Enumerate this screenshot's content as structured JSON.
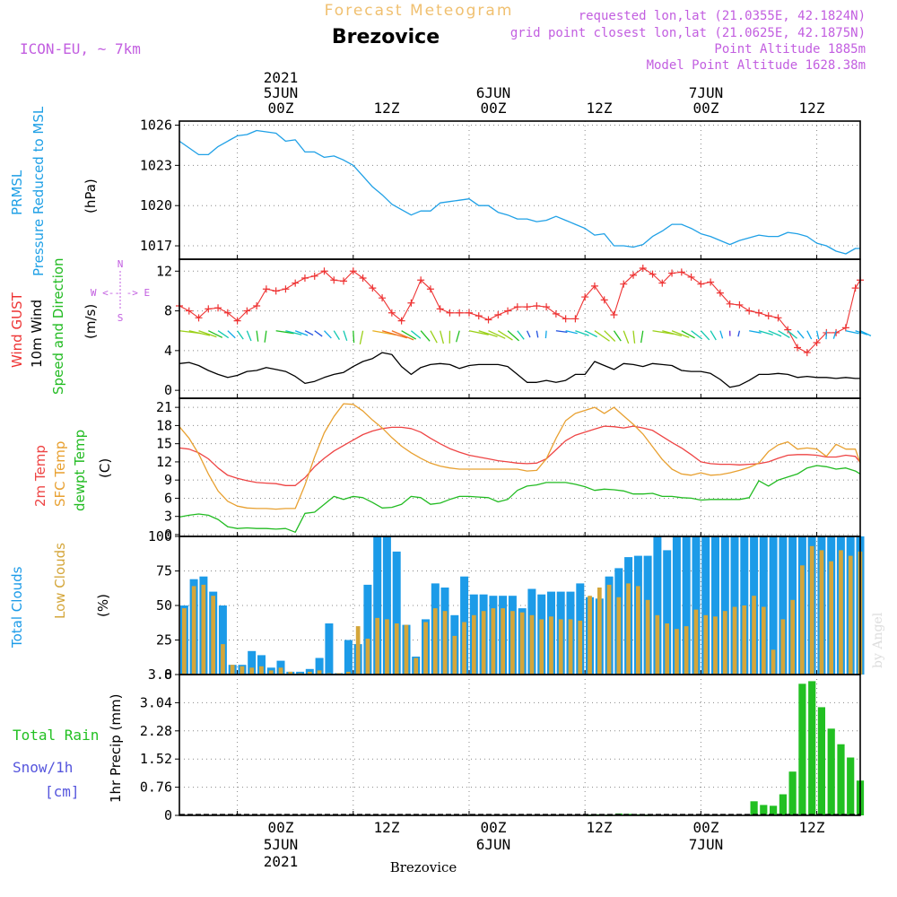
{
  "header": {
    "title": "Forecast Meteogram",
    "location": "Brezovice",
    "model": "ICON-EU, ~ 7km",
    "requested": "requested lon,lat (21.0355E, 42.1824N)",
    "gridpoint": "grid point closest lon,lat (21.0625E, 42.1875N)",
    "point_alt": "Point Altitude 1885m",
    "model_alt": "Model Point Altitude 1628.38m",
    "footer_location": "Brezovice",
    "credit": "by Angel"
  },
  "time_axis": {
    "year": "2021",
    "ticks": [
      "00Z",
      "12Z",
      "00Z",
      "12Z",
      "00Z",
      "12Z"
    ],
    "dates": [
      "5JUN",
      "6JUN",
      "7JUN"
    ],
    "start_hour": -6,
    "end_hour": 64.5
  },
  "colors": {
    "pressure": "#1fa0e6",
    "gust": "#ee3333",
    "wind10m": "#000000",
    "direction": "#22bb22",
    "temp2m": "#ee4444",
    "sfc_temp": "#e8a030",
    "dewpt": "#22bb22",
    "total_clouds": "#1c9be8",
    "low_clouds": "#d4a63a",
    "precip": "#22c022",
    "meta": "#c25ee0",
    "title_faint": "#f0c070",
    "snow_label": "#5555dd",
    "credit": "#dddddd"
  },
  "chart_data": [
    {
      "type": "line",
      "name": "pressure",
      "ylabel": [
        "PRMSL",
        "Pressure Reduced to MSL"
      ],
      "unit": "(hPa)",
      "ylim": [
        1016,
        1026.3
      ],
      "yticks": [
        1017,
        1020,
        1023,
        1026
      ],
      "x": [
        -6,
        -5,
        -4,
        -3,
        -2,
        -1,
        0,
        1,
        2,
        3,
        4,
        5,
        6,
        7,
        8,
        9,
        10,
        11,
        12,
        13,
        14,
        15,
        16,
        17,
        18,
        19,
        20,
        21,
        22,
        23,
        24,
        25,
        26,
        27,
        28,
        29,
        30,
        31,
        32,
        33,
        34,
        35,
        36,
        37,
        38,
        39,
        40,
        41,
        42,
        43,
        44,
        45,
        46,
        47,
        48,
        49,
        50,
        51,
        52,
        53,
        54,
        55,
        56,
        57,
        58,
        59,
        60,
        61,
        62,
        63,
        64,
        64.5
      ],
      "values": [
        1024.8,
        1024.3,
        1023.8,
        1023.8,
        1024.4,
        1024.8,
        1025.2,
        1025.3,
        1025.6,
        1025.5,
        1025.4,
        1024.8,
        1024.9,
        1024.0,
        1024.0,
        1023.6,
        1023.7,
        1023.4,
        1023.0,
        1022.2,
        1021.4,
        1020.8,
        1020.1,
        1019.7,
        1019.3,
        1019.6,
        1019.6,
        1020.2,
        1020.3,
        1020.4,
        1020.5,
        1020.0,
        1020.0,
        1019.5,
        1019.3,
        1019.0,
        1019.0,
        1018.8,
        1018.9,
        1019.2,
        1018.9,
        1018.6,
        1018.3,
        1017.8,
        1017.9,
        1017.0,
        1017.0,
        1016.9,
        1017.1,
        1017.7,
        1018.1,
        1018.6,
        1018.6,
        1018.3,
        1017.9,
        1017.7,
        1017.4,
        1017.1,
        1017.4,
        1017.6,
        1017.8,
        1017.7,
        1017.7,
        1018.0,
        1017.9,
        1017.7,
        1017.2,
        1017.0,
        1016.6,
        1016.4,
        1016.8,
        1016.8
      ]
    },
    {
      "type": "line",
      "name": "wind",
      "ylabel": [
        "Wind GUST",
        "10m Wind",
        "Speed and Direction"
      ],
      "unit": "(m/s)",
      "compass": [
        "N",
        "S",
        "W <-- -> E"
      ],
      "ylim": [
        -0.8,
        13.2
      ],
      "yticks": [
        0,
        4,
        8,
        12
      ],
      "x": [
        -6,
        -5,
        -4,
        -3,
        -2,
        -1,
        0,
        1,
        2,
        3,
        4,
        5,
        6,
        7,
        8,
        9,
        10,
        11,
        12,
        13,
        14,
        15,
        16,
        17,
        18,
        19,
        20,
        21,
        22,
        23,
        24,
        25,
        26,
        27,
        28,
        29,
        30,
        31,
        32,
        33,
        34,
        35,
        36,
        37,
        38,
        39,
        40,
        41,
        42,
        43,
        44,
        45,
        46,
        47,
        48,
        49,
        50,
        51,
        52,
        53,
        54,
        55,
        56,
        57,
        58,
        59,
        60,
        61,
        62,
        63,
        64,
        64.5
      ],
      "series": [
        {
          "name": "Wind GUST",
          "values": [
            8.5,
            8.0,
            7.3,
            8.2,
            8.3,
            7.8,
            7.0,
            8.0,
            8.5,
            10.2,
            10.0,
            10.2,
            10.8,
            11.3,
            11.5,
            12.0,
            11.1,
            11.0,
            12.0,
            11.3,
            10.3,
            9.3,
            7.8,
            7.0,
            8.8,
            11.1,
            10.2,
            8.2,
            7.8,
            7.8,
            7.8,
            7.5,
            7.1,
            7.6,
            8.0,
            8.4,
            8.4,
            8.5,
            8.4,
            7.7,
            7.2,
            7.2,
            9.4,
            10.5,
            9.1,
            7.6,
            10.7,
            11.6,
            12.3,
            11.7,
            10.8,
            11.8,
            11.9,
            11.4,
            10.7,
            10.9,
            9.8,
            8.7,
            8.6,
            8.0,
            7.8,
            7.5,
            7.3,
            6.1,
            4.3,
            3.8,
            4.8,
            5.8,
            5.8,
            6.3,
            10.3,
            11.1
          ]
        },
        {
          "name": "10m Wind",
          "values": [
            2.7,
            2.8,
            2.5,
            2.0,
            1.6,
            1.3,
            1.5,
            1.9,
            2.0,
            2.3,
            2.1,
            1.9,
            1.4,
            0.7,
            0.9,
            1.3,
            1.6,
            1.8,
            2.4,
            2.9,
            3.2,
            3.8,
            3.6,
            2.4,
            1.6,
            2.3,
            2.6,
            2.7,
            2.6,
            2.2,
            2.5,
            2.6,
            2.6,
            2.6,
            2.4,
            1.6,
            0.8,
            0.8,
            1.0,
            0.8,
            1.0,
            1.6,
            1.6,
            2.9,
            2.5,
            2.1,
            2.7,
            2.6,
            2.4,
            2.7,
            2.6,
            2.5,
            2.0,
            1.9,
            1.9,
            1.7,
            1.1,
            0.3,
            0.5,
            1.0,
            1.6,
            1.6,
            1.7,
            1.6,
            1.3,
            1.4,
            1.3,
            1.3,
            1.2,
            1.3,
            1.2,
            1.2
          ]
        }
      ]
    },
    {
      "type": "line",
      "name": "temperature",
      "ylabel": [
        "2m Temp",
        "SFC Temp",
        "dewpt Temp"
      ],
      "unit": "(C)",
      "ylim": [
        -0.3,
        22.5
      ],
      "yticks": [
        0,
        3,
        6,
        9,
        12,
        15,
        18,
        21
      ],
      "x": [
        -6,
        -5,
        -4,
        -3,
        -2,
        -1,
        0,
        1,
        2,
        3,
        4,
        5,
        6,
        7,
        8,
        9,
        10,
        11,
        12,
        13,
        14,
        15,
        16,
        17,
        18,
        19,
        20,
        21,
        22,
        23,
        24,
        25,
        26,
        27,
        28,
        29,
        30,
        31,
        32,
        33,
        34,
        35,
        36,
        37,
        38,
        39,
        40,
        41,
        42,
        43,
        44,
        45,
        46,
        47,
        48,
        49,
        50,
        51,
        52,
        53,
        54,
        55,
        56,
        57,
        58,
        59,
        60,
        61,
        62,
        63,
        64,
        64.5
      ],
      "series": [
        {
          "name": "2m Temp",
          "values": [
            14.3,
            14.1,
            13.5,
            12.5,
            11.0,
            9.8,
            9.3,
            8.9,
            8.6,
            8.5,
            8.4,
            8.1,
            8.1,
            9.4,
            11.2,
            12.6,
            13.8,
            14.7,
            15.6,
            16.5,
            17.1,
            17.5,
            17.7,
            17.7,
            17.5,
            16.9,
            15.9,
            15.0,
            14.2,
            13.6,
            13.1,
            12.8,
            12.5,
            12.2,
            12.0,
            11.8,
            11.7,
            11.8,
            12.5,
            14.0,
            15.5,
            16.4,
            16.9,
            17.4,
            17.9,
            17.8,
            17.6,
            17.9,
            17.6,
            17.2,
            16.2,
            15.2,
            14.3,
            13.2,
            12.0,
            11.7,
            11.6,
            11.6,
            11.5,
            11.6,
            11.7,
            12.0,
            12.6,
            13.1,
            13.2,
            13.2,
            13.1,
            12.8,
            12.8,
            13.1,
            12.9,
            11.9
          ]
        },
        {
          "name": "SFC Temp",
          "values": [
            17.8,
            15.9,
            13.3,
            10.0,
            7.2,
            5.5,
            4.7,
            4.4,
            4.3,
            4.3,
            4.2,
            4.3,
            4.3,
            8.2,
            12.8,
            16.8,
            19.5,
            21.6,
            21.5,
            20.4,
            18.9,
            17.6,
            16.0,
            14.6,
            13.5,
            12.6,
            11.8,
            11.3,
            11.0,
            10.8,
            10.8,
            10.8,
            10.8,
            10.8,
            10.8,
            10.8,
            10.5,
            10.6,
            12.5,
            15.9,
            18.8,
            20.0,
            20.5,
            21.0,
            20.0,
            21.0,
            19.6,
            18.2,
            16.6,
            14.5,
            12.4,
            10.8,
            10.0,
            9.8,
            10.2,
            9.8,
            9.9,
            10.2,
            10.6,
            11.1,
            11.8,
            13.7,
            14.8,
            15.3,
            14.1,
            14.3,
            14.1,
            12.9,
            14.9,
            14.1,
            14.1,
            11.8
          ]
        },
        {
          "name": "dewpt Temp",
          "values": [
            2.9,
            3.2,
            3.4,
            3.2,
            2.5,
            1.3,
            1.0,
            1.1,
            1.0,
            1.0,
            0.9,
            1.0,
            0.4,
            3.5,
            3.7,
            5.0,
            6.3,
            5.8,
            6.3,
            6.1,
            5.3,
            4.4,
            4.5,
            5.0,
            6.3,
            6.1,
            5.0,
            5.2,
            5.8,
            6.3,
            6.3,
            6.2,
            6.1,
            5.4,
            5.8,
            7.3,
            8.0,
            8.2,
            8.6,
            8.6,
            8.6,
            8.3,
            7.9,
            7.3,
            7.5,
            7.4,
            7.2,
            6.7,
            6.7,
            6.8,
            6.3,
            6.3,
            6.1,
            6.0,
            5.7,
            5.8,
            5.8,
            5.8,
            5.8,
            6.1,
            8.9,
            8.0,
            9.0,
            9.5,
            10.0,
            11.0,
            11.4,
            11.2,
            10.8,
            11.0,
            10.5,
            10.0
          ]
        }
      ]
    },
    {
      "type": "bar",
      "name": "clouds",
      "ylabel": [
        "Total Clouds",
        "Low Clouds"
      ],
      "unit": "(%)",
      "ylim": [
        0,
        100
      ],
      "yticks": [
        0,
        25,
        50,
        75,
        100
      ],
      "x": [
        -6,
        -5,
        -4,
        -3,
        -2,
        -1,
        0,
        1,
        2,
        3,
        4,
        5,
        6,
        7,
        8,
        9,
        10,
        11,
        12,
        13,
        14,
        15,
        16,
        17,
        18,
        19,
        20,
        21,
        22,
        23,
        24,
        25,
        26,
        27,
        28,
        29,
        30,
        31,
        32,
        33,
        34,
        35,
        36,
        37,
        38,
        39,
        40,
        41,
        42,
        43,
        44,
        45,
        46,
        47,
        48,
        49,
        50,
        51,
        52,
        53,
        54,
        55,
        56,
        57,
        58,
        59,
        60,
        61,
        62,
        63,
        64
      ],
      "series": [
        {
          "name": "Total Clouds",
          "values": [
            50,
            69,
            71,
            60,
            50,
            7,
            7,
            17,
            14,
            5,
            10,
            2,
            2,
            4,
            12,
            37,
            1,
            25,
            22,
            65,
            100,
            100,
            89,
            36,
            13,
            40,
            66,
            63,
            43,
            71,
            58,
            58,
            57,
            57,
            57,
            48,
            62,
            58,
            60,
            60,
            60,
            66,
            56,
            55,
            71,
            77,
            85,
            86,
            86,
            100,
            90,
            100,
            100,
            100,
            100,
            100,
            100,
            100,
            100,
            100,
            100,
            100,
            100,
            100,
            100,
            100,
            100,
            100,
            100,
            100,
            100
          ]
        },
        {
          "name": "Low Clouds",
          "values": [
            48,
            64,
            65,
            57,
            22,
            7,
            6,
            5,
            6,
            3,
            5,
            2,
            1,
            2,
            3,
            1,
            1,
            2,
            35,
            26,
            41,
            40,
            37,
            36,
            12,
            38,
            48,
            46,
            28,
            38,
            43,
            46,
            48,
            48,
            46,
            45,
            43,
            40,
            42,
            40,
            40,
            39,
            57,
            63,
            65,
            56,
            66,
            64,
            54,
            43,
            37,
            33,
            35,
            47,
            43,
            42,
            46,
            49,
            50,
            57,
            49,
            18,
            40,
            54,
            79,
            93,
            90,
            82,
            90,
            86,
            89
          ]
        }
      ]
    },
    {
      "type": "bar",
      "name": "precipitation",
      "ylabel": [
        "Total Rain",
        "Snow/1h",
        "[cm]"
      ],
      "unit": "1hr Precip (mm)",
      "ylim": [
        0,
        3.8
      ],
      "yticks": [
        "0",
        "0.76",
        "1.52",
        "2.28",
        "3.04",
        "3.8"
      ],
      "x": [
        -6,
        -5,
        -4,
        -3,
        -2,
        -1,
        0,
        1,
        2,
        3,
        4,
        5,
        6,
        7,
        8,
        9,
        10,
        11,
        12,
        13,
        14,
        15,
        16,
        17,
        18,
        19,
        20,
        21,
        22,
        23,
        24,
        25,
        26,
        27,
        28,
        29,
        30,
        31,
        32,
        33,
        34,
        35,
        36,
        37,
        38,
        39,
        40,
        41,
        42,
        43,
        44,
        45,
        46,
        47,
        48,
        49,
        50,
        51,
        52,
        53,
        54,
        55,
        56,
        57,
        58,
        59,
        60,
        61,
        62,
        63,
        64
      ],
      "values": [
        0,
        0,
        0,
        0,
        0,
        0,
        0,
        0,
        0,
        0,
        0,
        0,
        0,
        0,
        0,
        0,
        0,
        0,
        0,
        0,
        0,
        0,
        0,
        0,
        0,
        0,
        0,
        0,
        0,
        0,
        0,
        0,
        0,
        0,
        0,
        0,
        0,
        0,
        0,
        0,
        0,
        0,
        0.02,
        0.03,
        0.02,
        0.05,
        0.04,
        0.03,
        0.02,
        0,
        0,
        0,
        0,
        0,
        0,
        0,
        0,
        0,
        0,
        0.38,
        0.28,
        0.26,
        0.57,
        1.18,
        3.55,
        3.62,
        2.92,
        2.34,
        1.92,
        1.56,
        0.94
      ]
    }
  ]
}
